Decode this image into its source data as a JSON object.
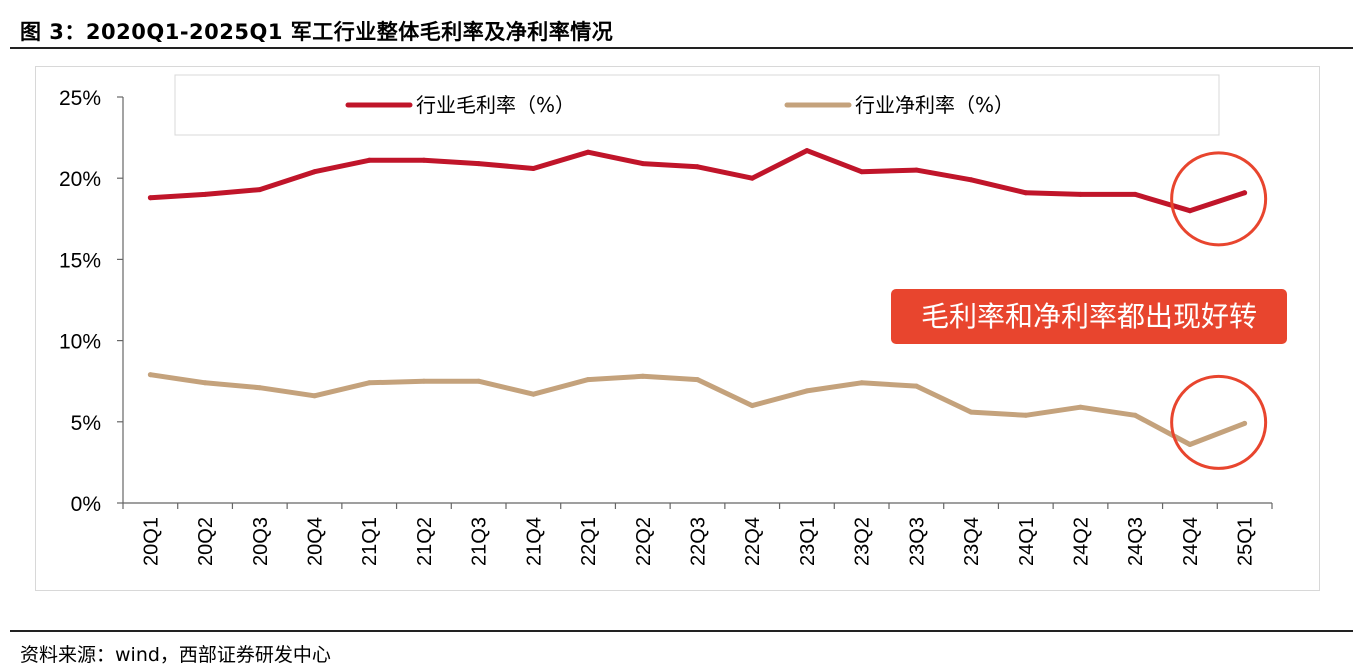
{
  "figure": {
    "title": "图 3：2020Q1-2025Q1 军工行业整体毛利率及净利率情况",
    "source": "资料来源：wind，西部证券研发中心",
    "annotation": "毛利率和净利率都出现好转"
  },
  "chart_data": {
    "type": "line",
    "title": "",
    "xlabel": "",
    "ylabel": "",
    "ylim": [
      0,
      25
    ],
    "y_ticks": [
      "0%",
      "5%",
      "10%",
      "15%",
      "20%",
      "25%"
    ],
    "grid": false,
    "legend_position": "top",
    "categories": [
      "20Q1",
      "20Q2",
      "20Q3",
      "20Q4",
      "21Q1",
      "21Q2",
      "21Q3",
      "21Q4",
      "22Q1",
      "22Q2",
      "22Q3",
      "22Q4",
      "23Q1",
      "23Q2",
      "23Q3",
      "23Q4",
      "24Q1",
      "24Q2",
      "24Q3",
      "24Q4",
      "25Q1"
    ],
    "series": [
      {
        "name": "行业毛利率（%）",
        "color": "#c0152a",
        "values": [
          18.8,
          19.0,
          19.3,
          20.4,
          21.1,
          21.1,
          20.9,
          20.6,
          21.6,
          20.9,
          20.7,
          20.0,
          21.7,
          20.4,
          20.5,
          19.9,
          19.1,
          19.0,
          19.0,
          18.0,
          19.1
        ]
      },
      {
        "name": "行业净利率（%）",
        "color": "#c4a27c",
        "values": [
          7.9,
          7.4,
          7.1,
          6.6,
          7.4,
          7.5,
          7.5,
          6.7,
          7.6,
          7.8,
          7.6,
          6.0,
          6.9,
          7.4,
          7.2,
          5.6,
          5.4,
          5.9,
          5.4,
          3.6,
          4.9
        ]
      }
    ],
    "highlight_color": "#e8452e"
  }
}
